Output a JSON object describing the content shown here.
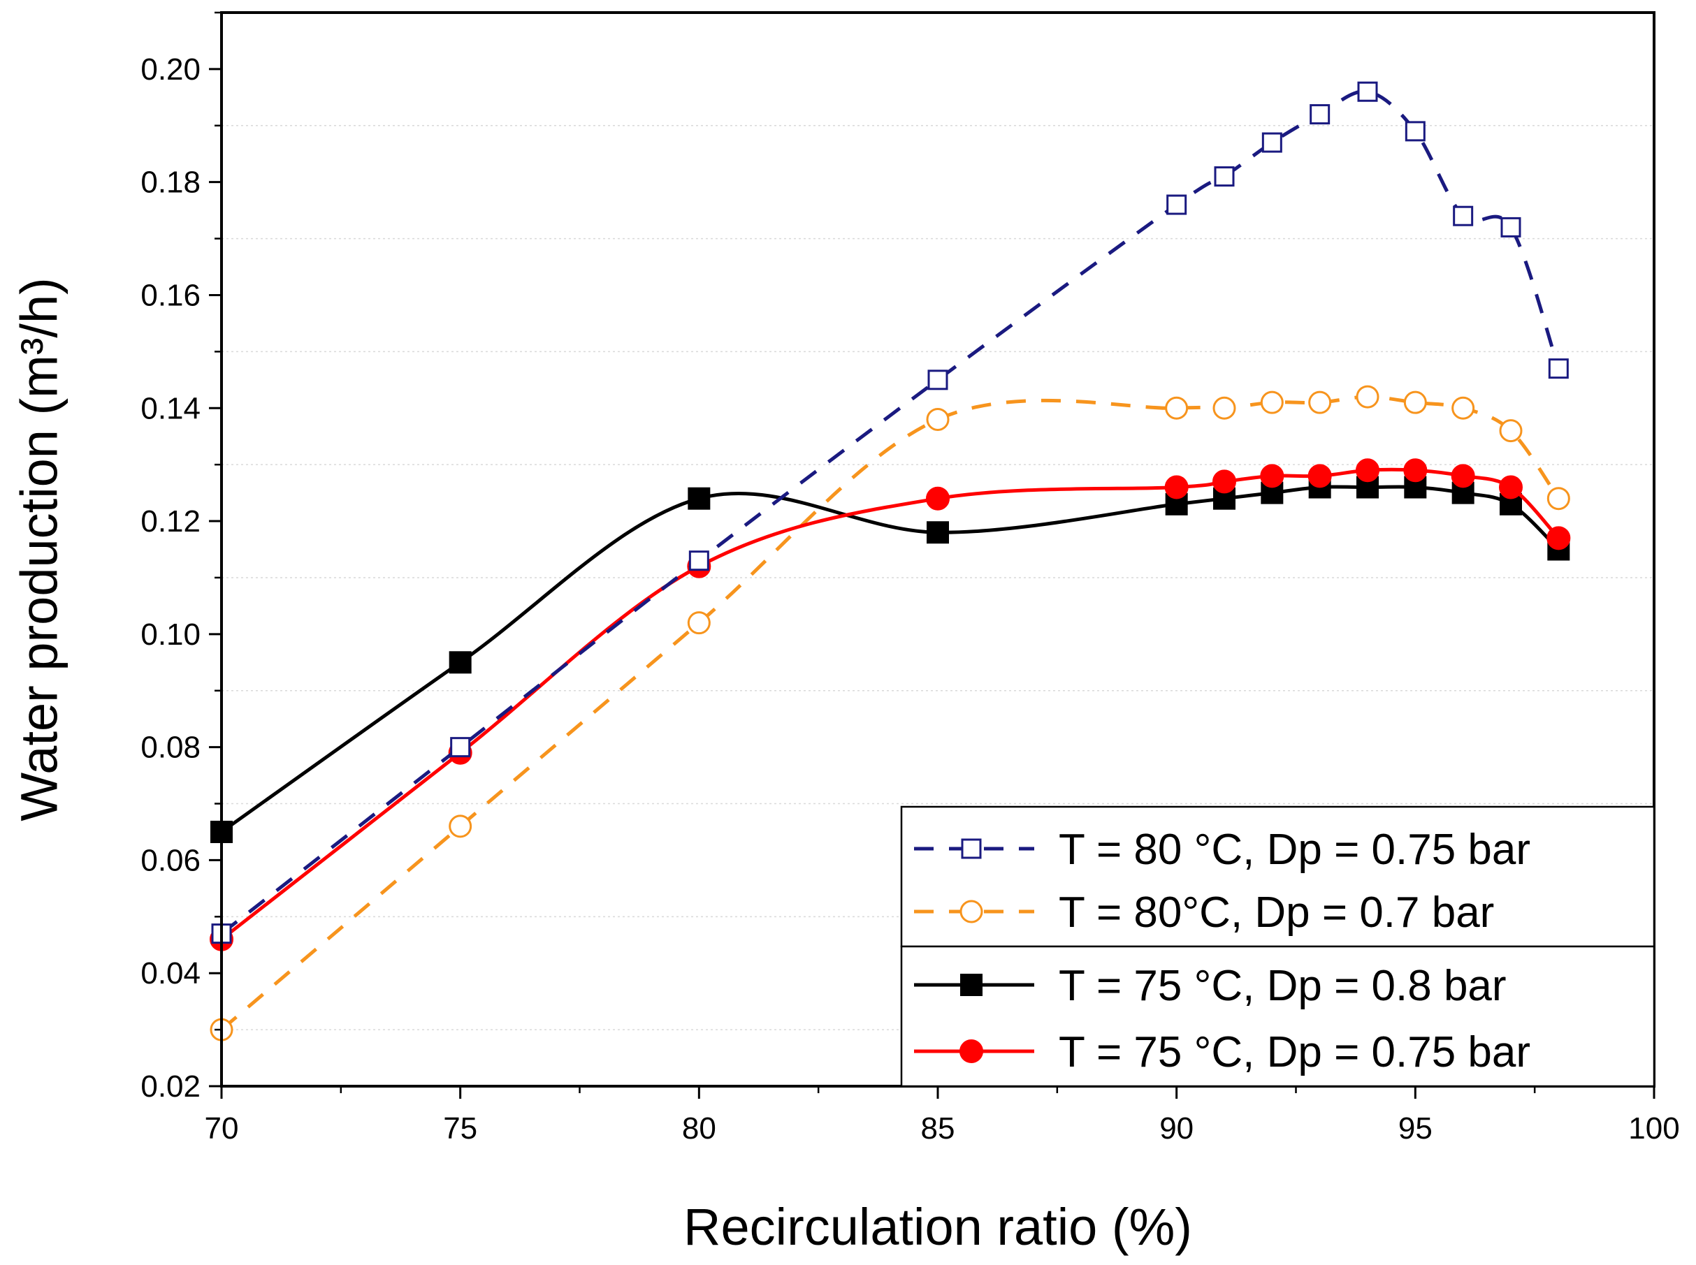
{
  "chart_data": {
    "type": "line",
    "title": "",
    "xlabel": "Recirculation ratio (%)",
    "ylabel": "Water production (m³/h)",
    "xlim": [
      70,
      100
    ],
    "ylim": [
      0.02,
      0.21
    ],
    "xticks": [
      70,
      75,
      80,
      85,
      90,
      95,
      100
    ],
    "yticks": [
      0.02,
      0.04,
      0.06,
      0.08,
      0.1,
      0.12,
      0.14,
      0.16,
      0.18,
      0.2
    ],
    "xtick_labels": [
      "70",
      "75",
      "80",
      "85",
      "90",
      "95",
      "100"
    ],
    "ytick_labels": [
      "0.02",
      "0.04",
      "0.06",
      "0.08",
      "0.10",
      "0.12",
      "0.14",
      "0.16",
      "0.18",
      "0.20"
    ],
    "grid": "horizontal minor dotted",
    "legend_position": "bottom-right",
    "series": [
      {
        "name": "T = 80 °C, Dp = 0.75 bar",
        "color": "#1a1a80",
        "line_style": "dashed",
        "marker": "open-square",
        "x": [
          70,
          75,
          80,
          85,
          90,
          91,
          92,
          93,
          94,
          95,
          96,
          97,
          98
        ],
        "values": [
          0.047,
          0.08,
          0.113,
          0.145,
          0.176,
          0.181,
          0.187,
          0.192,
          0.196,
          0.189,
          0.174,
          0.172,
          0.147
        ]
      },
      {
        "name": "T = 80°C, Dp = 0.7 bar",
        "color": "#f7941d",
        "line_style": "dashed",
        "marker": "open-circle",
        "x": [
          70,
          75,
          80,
          85,
          90,
          91,
          92,
          93,
          94,
          95,
          96,
          97,
          98
        ],
        "values": [
          0.03,
          0.066,
          0.102,
          0.138,
          0.14,
          0.14,
          0.141,
          0.141,
          0.142,
          0.141,
          0.14,
          0.136,
          0.124
        ]
      },
      {
        "name": "T = 75 °C, Dp = 0.8 bar",
        "color": "#000000",
        "line_style": "solid",
        "marker": "filled-square",
        "x": [
          70,
          75,
          80,
          85,
          90,
          91,
          92,
          93,
          94,
          95,
          96,
          97,
          98
        ],
        "values": [
          0.065,
          0.095,
          0.124,
          0.118,
          0.123,
          0.124,
          0.125,
          0.126,
          0.126,
          0.126,
          0.125,
          0.123,
          0.115
        ]
      },
      {
        "name": "T = 75 °C, Dp = 0.75 bar",
        "color": "#ff0000",
        "line_style": "solid",
        "marker": "filled-circle",
        "x": [
          70,
          75,
          80,
          85,
          90,
          91,
          92,
          93,
          94,
          95,
          96,
          97,
          98
        ],
        "values": [
          0.046,
          0.079,
          0.112,
          0.124,
          0.126,
          0.127,
          0.128,
          0.128,
          0.129,
          0.129,
          0.128,
          0.126,
          0.117
        ]
      }
    ]
  }
}
